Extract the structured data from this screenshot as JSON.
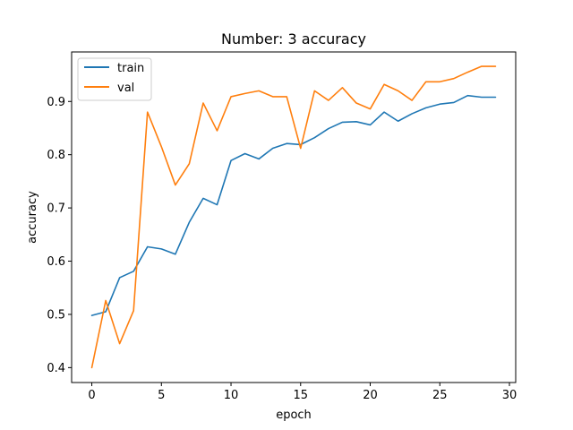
{
  "chart_data": {
    "type": "line",
    "title": "Number: 3 accuracy",
    "xlabel": "epoch",
    "ylabel": "accuracy",
    "xlim": [
      -1.45,
      30.45
    ],
    "ylim": [
      0.372,
      0.993
    ],
    "xticks": [
      0,
      5,
      10,
      15,
      20,
      25,
      30
    ],
    "yticks": [
      0.4,
      0.5,
      0.6,
      0.7,
      0.8,
      0.9
    ],
    "xtick_labels": [
      "0",
      "5",
      "10",
      "15",
      "20",
      "25",
      "30"
    ],
    "ytick_labels": [
      "0.4",
      "0.5",
      "0.6",
      "0.7",
      "0.8",
      "0.9"
    ],
    "grid": false,
    "legend_position": "upper-left",
    "x": [
      0,
      1,
      2,
      3,
      4,
      5,
      6,
      7,
      8,
      9,
      10,
      11,
      12,
      13,
      14,
      15,
      16,
      17,
      18,
      19,
      20,
      21,
      22,
      23,
      24,
      25,
      26,
      27,
      28,
      29
    ],
    "series": [
      {
        "name": "train",
        "color": "#1f77b4",
        "values": [
          0.498,
          0.505,
          0.569,
          0.581,
          0.627,
          0.623,
          0.613,
          0.673,
          0.718,
          0.706,
          0.789,
          0.802,
          0.792,
          0.812,
          0.821,
          0.819,
          0.832,
          0.849,
          0.861,
          0.862,
          0.856,
          0.88,
          0.863,
          0.877,
          0.888,
          0.895,
          0.898,
          0.911,
          0.908,
          0.908
        ]
      },
      {
        "name": "val",
        "color": "#ff7f0e",
        "values": [
          0.4,
          0.526,
          0.445,
          0.507,
          0.88,
          0.815,
          0.743,
          0.783,
          0.897,
          0.845,
          0.909,
          0.915,
          0.92,
          0.909,
          0.909,
          0.812,
          0.92,
          0.902,
          0.926,
          0.897,
          0.886,
          0.932,
          0.92,
          0.902,
          0.937,
          0.937,
          0.943,
          0.955,
          0.966,
          0.966
        ]
      }
    ]
  }
}
